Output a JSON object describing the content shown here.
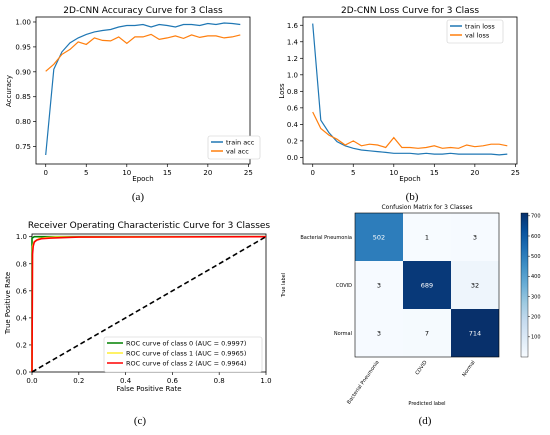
{
  "captions": [
    "(a)",
    "(b)",
    "(c)",
    "(d)"
  ],
  "chart_data": [
    {
      "type": "line",
      "title": "2D-CNN Accuracy Curve for 3 Class",
      "xlabel": "Epoch",
      "ylabel": "Accuracy",
      "xlim": [
        -1.2,
        25.2
      ],
      "ylim": [
        0.715,
        1.01
      ],
      "xticks": [
        0,
        5,
        10,
        15,
        20,
        25
      ],
      "yticks": [
        0.75,
        0.8,
        0.85,
        0.9,
        0.95,
        1.0
      ],
      "ytick_labels": [
        "0.75",
        "0.80",
        "0.85",
        "0.90",
        "0.95",
        "1.00"
      ],
      "legend_position": "lower-right",
      "series": [
        {
          "name": "train acc",
          "color": "#1f77b4",
          "x": [
            0,
            1,
            2,
            3,
            4,
            5,
            6,
            7,
            8,
            9,
            10,
            11,
            12,
            13,
            14,
            15,
            16,
            17,
            18,
            19,
            20,
            21,
            22,
            23,
            24
          ],
          "values": [
            0.733,
            0.905,
            0.94,
            0.958,
            0.968,
            0.975,
            0.98,
            0.983,
            0.985,
            0.99,
            0.993,
            0.993,
            0.995,
            0.99,
            0.995,
            0.993,
            0.99,
            0.995,
            0.995,
            0.993,
            0.997,
            0.995,
            0.998,
            0.997,
            0.995
          ]
        },
        {
          "name": "val acc",
          "color": "#ff7f0e",
          "x": [
            0,
            1,
            2,
            3,
            4,
            5,
            6,
            7,
            8,
            9,
            10,
            11,
            12,
            13,
            14,
            15,
            16,
            17,
            18,
            19,
            20,
            21,
            22,
            23,
            24
          ],
          "values": [
            0.901,
            0.915,
            0.935,
            0.945,
            0.96,
            0.955,
            0.968,
            0.963,
            0.962,
            0.97,
            0.957,
            0.97,
            0.97,
            0.975,
            0.965,
            0.968,
            0.972,
            0.967,
            0.974,
            0.969,
            0.972,
            0.972,
            0.968,
            0.97,
            0.974
          ]
        }
      ]
    },
    {
      "type": "line",
      "title": "2D-CNN Loss Curve for 3 Class",
      "xlabel": "Epoch",
      "ylabel": "Loss",
      "xlim": [
        -1.2,
        25.2
      ],
      "ylim": [
        -0.08,
        1.7
      ],
      "xticks": [
        0,
        5,
        10,
        15,
        20,
        25
      ],
      "yticks": [
        0.0,
        0.2,
        0.4,
        0.6,
        0.8,
        1.0,
        1.2,
        1.4,
        1.6
      ],
      "ytick_labels": [
        "0.0",
        "0.2",
        "0.4",
        "0.6",
        "0.8",
        "1.0",
        "1.2",
        "1.4",
        "1.6"
      ],
      "legend_position": "top-right",
      "series": [
        {
          "name": "train loss",
          "color": "#1f77b4",
          "x": [
            0,
            1,
            2,
            3,
            4,
            5,
            6,
            7,
            8,
            9,
            10,
            11,
            12,
            13,
            14,
            15,
            16,
            17,
            18,
            19,
            20,
            21,
            22,
            23,
            24
          ],
          "values": [
            1.62,
            0.45,
            0.3,
            0.19,
            0.14,
            0.11,
            0.09,
            0.08,
            0.07,
            0.06,
            0.05,
            0.05,
            0.05,
            0.04,
            0.05,
            0.04,
            0.04,
            0.05,
            0.04,
            0.04,
            0.04,
            0.04,
            0.04,
            0.03,
            0.04
          ]
        },
        {
          "name": "val loss",
          "color": "#ff7f0e",
          "x": [
            0,
            1,
            2,
            3,
            4,
            5,
            6,
            7,
            8,
            9,
            10,
            11,
            12,
            13,
            14,
            15,
            16,
            17,
            18,
            19,
            20,
            21,
            22,
            23,
            24
          ],
          "values": [
            0.55,
            0.35,
            0.27,
            0.22,
            0.15,
            0.2,
            0.14,
            0.16,
            0.15,
            0.12,
            0.24,
            0.12,
            0.12,
            0.11,
            0.12,
            0.14,
            0.11,
            0.12,
            0.11,
            0.15,
            0.13,
            0.14,
            0.16,
            0.16,
            0.14
          ]
        }
      ]
    },
    {
      "type": "line",
      "title": "Receiver Operating Characteristic Curve for 3 Classes",
      "xlabel": "False Positive Rate",
      "ylabel": "True Positive Rate",
      "xlim": [
        0,
        1
      ],
      "ylim": [
        0,
        1.02
      ],
      "xticks": [
        0,
        0.2,
        0.4,
        0.6,
        0.8,
        1.0
      ],
      "xtick_labels": [
        "0.0",
        "0.2",
        "0.4",
        "0.6",
        "0.8",
        "1.0"
      ],
      "yticks": [
        0,
        0.2,
        0.4,
        0.6,
        0.8,
        1.0
      ],
      "ytick_labels": [
        "0.0",
        "0.2",
        "0.4",
        "0.6",
        "0.8",
        "1.0"
      ],
      "legend_position": "lower-right",
      "series": [
        {
          "name": "ROC curve of class 0 (AUC = 0.9997)",
          "color": "#008000",
          "x": [
            0,
            0,
            0.005,
            0.01,
            0.03,
            1
          ],
          "values": [
            0,
            0.99,
            0.995,
            1,
            1,
            1
          ]
        },
        {
          "name": "ROC curve of class 1 (AUC = 0.9965)",
          "color": "#ffee33",
          "x": [
            0,
            0.002,
            0.01,
            0.03,
            0.06,
            0.1,
            1
          ],
          "values": [
            0,
            0.93,
            0.965,
            0.985,
            0.993,
            0.997,
            1
          ]
        },
        {
          "name": "ROC curve of class 2 (AUC = 0.9964)",
          "color": "#ff0000",
          "x": [
            0,
            0.002,
            0.005,
            0.01,
            0.02,
            0.04,
            0.08,
            0.2,
            1
          ],
          "values": [
            0,
            0.87,
            0.93,
            0.96,
            0.975,
            0.985,
            0.99,
            0.997,
            1
          ]
        },
        {
          "color": "#000000",
          "dashed": true,
          "x": [
            0,
            1
          ],
          "values": [
            0,
            1
          ]
        }
      ]
    },
    {
      "type": "heatmap",
      "title": "Confusion Matrix for 3 Classes",
      "xlabel": "Predicted label",
      "ylabel": "True label",
      "row_labels": [
        "Bacterial Pneumonia",
        "COVID",
        "Normal"
      ],
      "col_labels": [
        "Bacterial Pneumonia",
        "COVID",
        "Normal"
      ],
      "values": [
        [
          502,
          1,
          3
        ],
        [
          3,
          689,
          32
        ],
        [
          3,
          7,
          714
        ]
      ],
      "colorbar_ticks": [
        100,
        200,
        300,
        400,
        500,
        600,
        700
      ],
      "color_range": [
        0,
        714
      ]
    }
  ]
}
